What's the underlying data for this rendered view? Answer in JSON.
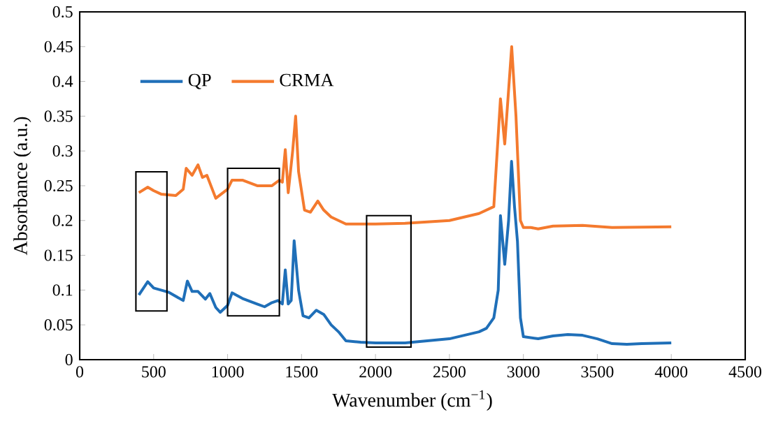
{
  "chart_data": {
    "type": "line",
    "xlabel": "Wavenumber (cm$^{−1}$)",
    "ylabel": "Absorbance (a.u.)",
    "xlim": [
      0,
      4500
    ],
    "xticks": [
      0,
      500,
      1000,
      1500,
      2000,
      2500,
      3000,
      3500,
      4000,
      4500
    ],
    "ylim": [
      0,
      0.5
    ],
    "yticks": [
      0,
      0.05,
      0.1,
      0.15,
      0.2,
      0.25,
      0.3,
      0.35,
      0.4,
      0.45,
      0.5
    ],
    "grid": false,
    "legend": "top left",
    "marker": "none",
    "line_style": "solid",
    "series": [
      {
        "name": "QP",
        "color": "#1f6fb8",
        "x": [
          400,
          460,
          500,
          600,
          700,
          728,
          760,
          800,
          850,
          880,
          920,
          950,
          1000,
          1030,
          1100,
          1200,
          1250,
          1300,
          1340,
          1370,
          1390,
          1410,
          1430,
          1450,
          1480,
          1510,
          1550,
          1600,
          1650,
          1700,
          1750,
          1800,
          1900,
          2000,
          2200,
          2300,
          2500,
          2700,
          2750,
          2800,
          2830,
          2845,
          2874,
          2900,
          2920,
          2940,
          2960,
          2980,
          3000,
          3100,
          3200,
          3300,
          3400,
          3500,
          3600,
          3700,
          3800,
          4000
        ],
        "values": [
          0.093,
          0.112,
          0.103,
          0.097,
          0.085,
          0.113,
          0.098,
          0.098,
          0.087,
          0.095,
          0.075,
          0.068,
          0.078,
          0.096,
          0.088,
          0.08,
          0.076,
          0.082,
          0.085,
          0.08,
          0.129,
          0.08,
          0.085,
          0.171,
          0.1,
          0.063,
          0.06,
          0.071,
          0.065,
          0.05,
          0.04,
          0.027,
          0.025,
          0.024,
          0.024,
          0.026,
          0.03,
          0.04,
          0.045,
          0.06,
          0.1,
          0.207,
          0.137,
          0.2,
          0.285,
          0.22,
          0.17,
          0.06,
          0.033,
          0.03,
          0.034,
          0.036,
          0.035,
          0.03,
          0.023,
          0.022,
          0.023,
          0.024
        ]
      },
      {
        "name": "CRMA",
        "color": "#f47a2e",
        "x": [
          400,
          460,
          500,
          550,
          650,
          700,
          720,
          760,
          800,
          830,
          860,
          920,
          1000,
          1030,
          1100,
          1200,
          1300,
          1350,
          1370,
          1390,
          1410,
          1440,
          1460,
          1480,
          1520,
          1560,
          1610,
          1650,
          1700,
          1800,
          2000,
          2200,
          2500,
          2700,
          2800,
          2845,
          2874,
          2921,
          2950,
          2980,
          3000,
          3050,
          3100,
          3200,
          3400,
          3600,
          4000
        ],
        "values": [
          0.24,
          0.248,
          0.243,
          0.238,
          0.236,
          0.245,
          0.275,
          0.265,
          0.28,
          0.262,
          0.265,
          0.232,
          0.245,
          0.258,
          0.258,
          0.25,
          0.25,
          0.258,
          0.255,
          0.302,
          0.24,
          0.3,
          0.35,
          0.27,
          0.215,
          0.212,
          0.228,
          0.215,
          0.205,
          0.195,
          0.195,
          0.196,
          0.2,
          0.21,
          0.22,
          0.375,
          0.31,
          0.45,
          0.35,
          0.2,
          0.19,
          0.19,
          0.188,
          0.192,
          0.193,
          0.19,
          0.191
        ]
      }
    ]
  }
}
